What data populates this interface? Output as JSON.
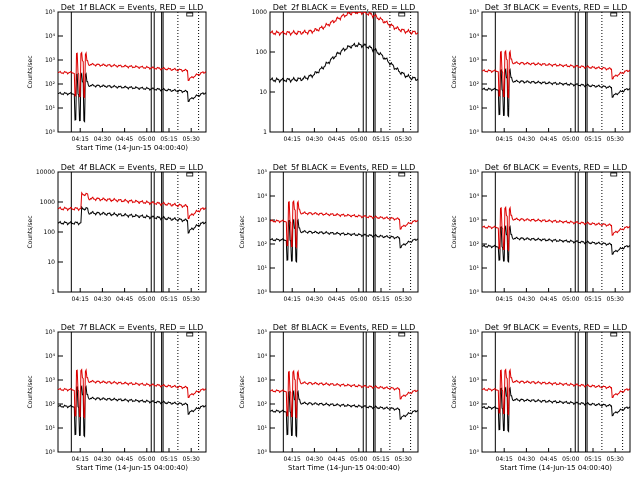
{
  "colors": {
    "events": "#000000",
    "lld": "#dd0000",
    "background": "#ffffff"
  },
  "chart_data": [
    {
      "type": "line",
      "title": "Det_1f BLACK = Events, RED = LLD",
      "ylabel": "Counts/sec",
      "xlabel": "Start Time (14-Jun-15 04:00:40)",
      "yscale": "log",
      "ylim": [
        1,
        100000
      ],
      "yticks": [
        "10⁰",
        "10¹",
        "10²",
        "10³",
        "10⁴",
        "10⁵"
      ],
      "xlim": [
        "04:00",
        "05:40"
      ],
      "xticks": [
        "04:15",
        "04:30",
        "04:45",
        "05:00",
        "05:15",
        "05:30"
      ],
      "series": [
        {
          "name": "Events",
          "level": 40,
          "drop": 3
        },
        {
          "name": "LLD",
          "level": 300,
          "drop": 30
        }
      ]
    },
    {
      "type": "line",
      "title": "Det_2f BLACK = Events, RED = LLD",
      "ylabel": "",
      "xlabel": "",
      "yscale": "log",
      "ylim": [
        1,
        1000
      ],
      "yticks": [
        "1",
        "10",
        "100",
        "1000"
      ],
      "xlim": [
        "04:00",
        "05:40"
      ],
      "xticks": [
        "04:15",
        "04:30",
        "04:45",
        "05:00",
        "05:15",
        "05:30"
      ],
      "series": [
        {
          "name": "Events",
          "level": 20,
          "peak": 150
        },
        {
          "name": "LLD",
          "level": 300,
          "peak": 1000
        }
      ]
    },
    {
      "type": "line",
      "title": "Det_3f BLACK = Events, RED = LLD",
      "ylabel": "Counts/sec",
      "xlabel": "",
      "yscale": "log",
      "ylim": [
        1,
        100000
      ],
      "yticks": [
        "10⁰",
        "10¹",
        "10²",
        "10³",
        "10⁴",
        "10⁵"
      ],
      "xlim": [
        "04:00",
        "05:40"
      ],
      "xticks": [
        "04:15",
        "04:30",
        "04:45",
        "05:00",
        "05:15",
        "05:30"
      ],
      "series": [
        {
          "name": "Events",
          "level": 60,
          "drop": 5
        },
        {
          "name": "LLD",
          "level": 350,
          "drop": 30
        }
      ]
    },
    {
      "type": "line",
      "title": "Det_4f BLACK = Events, RED = LLD",
      "ylabel": "Counts/sec",
      "xlabel": "",
      "yscale": "log",
      "ylim": [
        1,
        10000
      ],
      "yticks": [
        "1",
        "10",
        "100",
        "1000",
        "10000"
      ],
      "xlim": [
        "04:00",
        "05:40"
      ],
      "xticks": [
        "04:15",
        "04:30",
        "04:45",
        "05:00",
        "05:15",
        "05:30"
      ],
      "series": [
        {
          "name": "Events",
          "level": 200
        },
        {
          "name": "LLD",
          "level": 600
        }
      ]
    },
    {
      "type": "line",
      "title": "Det_5f BLACK = Events, RED = LLD",
      "ylabel": "Counts/sec",
      "xlabel": "",
      "yscale": "log",
      "ylim": [
        1,
        100000
      ],
      "yticks": [
        "10⁰",
        "10¹",
        "10²",
        "10³",
        "10⁴",
        "10⁵"
      ],
      "xlim": [
        "04:00",
        "05:40"
      ],
      "xticks": [
        "04:15",
        "04:30",
        "04:45",
        "05:00",
        "05:15",
        "05:30"
      ],
      "series": [
        {
          "name": "Events",
          "level": 150,
          "drop": 20
        },
        {
          "name": "LLD",
          "level": 900,
          "drop": 80
        }
      ]
    },
    {
      "type": "line",
      "title": "Det_6f BLACK = Events, RED = LLD",
      "ylabel": "Counts/sec",
      "xlabel": "",
      "yscale": "log",
      "ylim": [
        1,
        100000
      ],
      "yticks": [
        "10⁰",
        "10¹",
        "10²",
        "10³",
        "10⁴",
        "10⁵"
      ],
      "xlim": [
        "04:00",
        "05:40"
      ],
      "xticks": [
        "04:15",
        "04:30",
        "04:45",
        "05:00",
        "05:15",
        "05:30"
      ],
      "series": [
        {
          "name": "Events",
          "level": 80,
          "drop": 20
        },
        {
          "name": "LLD",
          "level": 500,
          "drop": 60
        }
      ]
    },
    {
      "type": "line",
      "title": "Det_7f BLACK = Events, RED = LLD",
      "ylabel": "Counts/sec",
      "xlabel": "Start Time (14-Jun-15 04:00:40)",
      "yscale": "log",
      "ylim": [
        1,
        100000
      ],
      "yticks": [
        "10⁰",
        "10¹",
        "10²",
        "10³",
        "10⁴",
        "10⁵"
      ],
      "xlim": [
        "04:00",
        "05:40"
      ],
      "xticks": [
        "04:15",
        "04:30",
        "04:45",
        "05:00",
        "05:15",
        "05:30"
      ],
      "series": [
        {
          "name": "Events",
          "level": 80,
          "drop": 5
        },
        {
          "name": "LLD",
          "level": 400,
          "drop": 30
        }
      ]
    },
    {
      "type": "line",
      "title": "Det_8f BLACK = Events, RED = LLD",
      "ylabel": "Counts/sec",
      "xlabel": "Start Time (14-Jun-15 04:00:40)",
      "yscale": "log",
      "ylim": [
        1,
        100000
      ],
      "yticks": [
        "10⁰",
        "10¹",
        "10²",
        "10³",
        "10⁴",
        "10⁵"
      ],
      "xlim": [
        "04:00",
        "05:40"
      ],
      "xticks": [
        "04:15",
        "04:30",
        "04:45",
        "05:00",
        "05:15",
        "05:30"
      ],
      "series": [
        {
          "name": "Events",
          "level": 50,
          "drop": 5
        },
        {
          "name": "LLD",
          "level": 350,
          "drop": 30
        }
      ]
    },
    {
      "type": "line",
      "title": "Det_9f BLACK = Events, RED = LLD",
      "ylabel": "Counts/sec",
      "xlabel": "Start Time (14-Jun-15 04:00:40)",
      "yscale": "log",
      "ylim": [
        1,
        100000
      ],
      "yticks": [
        "10⁰",
        "10¹",
        "10²",
        "10³",
        "10⁴",
        "10⁵"
      ],
      "xlim": [
        "04:00",
        "05:40"
      ],
      "xticks": [
        "04:15",
        "04:30",
        "04:45",
        "05:00",
        "05:15",
        "05:30"
      ],
      "series": [
        {
          "name": "Events",
          "level": 70,
          "drop": 8
        },
        {
          "name": "LLD",
          "level": 400,
          "drop": 40
        }
      ]
    }
  ]
}
